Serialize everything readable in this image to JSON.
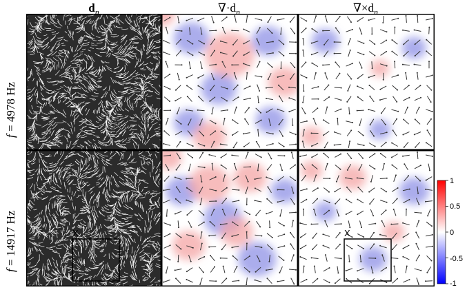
{
  "columns": {
    "director": "d",
    "divergence": "∇·d",
    "curl": "∇×d",
    "subscript": "n"
  },
  "rows": [
    {
      "prefix": "f",
      "value": " = 4978 Hz"
    },
    {
      "prefix": "f",
      "value": " = 14917 Hz"
    }
  ],
  "inset": {
    "label": "X"
  },
  "colorbar": {
    "ticks": [
      "1",
      "0.5",
      "0",
      "-0.5",
      "-1"
    ],
    "range": [
      -1,
      1
    ],
    "colors": {
      "max": "#ff0000",
      "mid": "#ffffff",
      "min": "#0000ff"
    }
  },
  "panel_colors": {
    "positive": "#f4a6a6",
    "negative": "#8f92e6",
    "line": "#ffffff",
    "background": "#2b2b2b",
    "arrow": "#333333"
  }
}
